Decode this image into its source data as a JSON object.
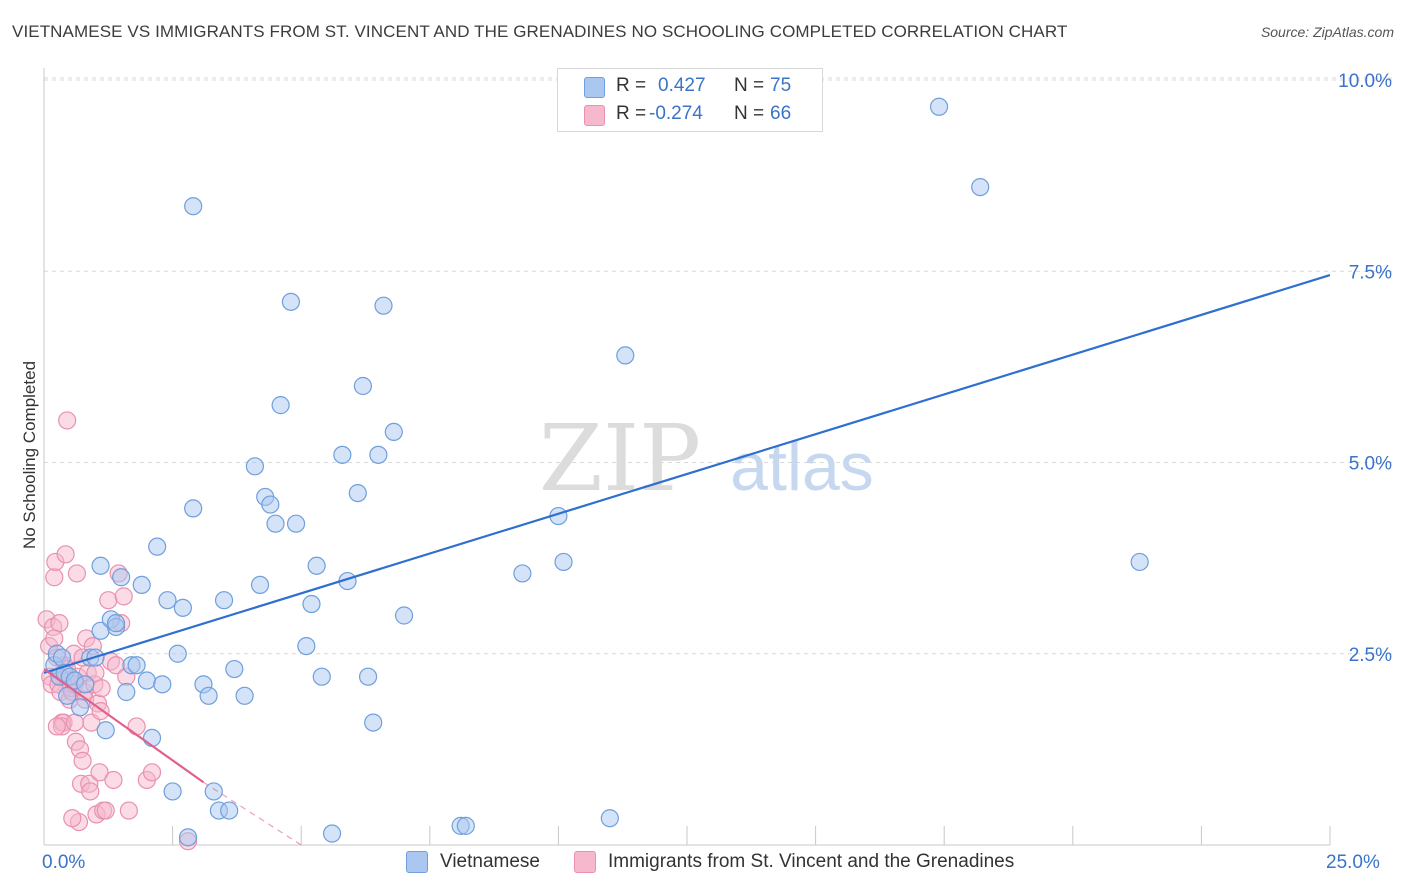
{
  "title": "VIETNAMESE VS IMMIGRANTS FROM ST. VINCENT AND THE GRENADINES NO SCHOOLING COMPLETED CORRELATION CHART",
  "source": "Source: ZipAtlas.com",
  "watermark": {
    "zip": "ZIP",
    "atlas": "atlas"
  },
  "legend_top": {
    "rows": [
      {
        "r_label": "R =",
        "r_value": "0.427",
        "n_label": "N =",
        "n_value": "75"
      },
      {
        "r_label": "R =",
        "r_value": "-0.274",
        "n_label": "N =",
        "n_value": "66"
      }
    ]
  },
  "x_axis": {
    "min_label": "0.0%",
    "max_label": "25.0%"
  },
  "colors": {
    "blue_fill": "#aac7ef",
    "blue_stroke": "#6f9fdc",
    "blue_line": "#2f6fcf",
    "pink_fill": "#f6b8cd",
    "pink_stroke": "#e991ae",
    "pink_line": "#e0608e",
    "grid": "#d9d9d9",
    "tick_label": "#3a73c9"
  },
  "chart_data": {
    "type": "scatter",
    "title": "VIETNAMESE VS IMMIGRANTS FROM ST. VINCENT AND THE GRENADINES NO SCHOOLING COMPLETED CORRELATION CHART",
    "xlabel": "",
    "ylabel": "No Schooling Completed",
    "xlim": [
      0,
      25
    ],
    "ylim": [
      0,
      10.0
    ],
    "y_ticks": [
      2.5,
      5.0,
      7.5,
      10.0
    ],
    "y_tick_labels": [
      "2.5%",
      "5.0%",
      "7.5%",
      "10.0%"
    ],
    "x_tick_labels": [
      "0.0%",
      "25.0%"
    ],
    "legend_position": "top-center",
    "series": [
      {
        "name": "Vietnamese",
        "R": 0.427,
        "N": 75,
        "trend": {
          "x": [
            0.0,
            25.0
          ],
          "y": [
            2.25,
            7.45
          ]
        },
        "points": [
          [
            0.2,
            2.35
          ],
          [
            0.25,
            2.5
          ],
          [
            0.3,
            2.2
          ],
          [
            0.35,
            2.45
          ],
          [
            0.4,
            2.25
          ],
          [
            0.45,
            1.95
          ],
          [
            0.5,
            2.2
          ],
          [
            0.6,
            2.15
          ],
          [
            0.7,
            1.8
          ],
          [
            0.8,
            2.1
          ],
          [
            0.9,
            2.45
          ],
          [
            1.0,
            2.45
          ],
          [
            1.1,
            2.8
          ],
          [
            1.2,
            1.5
          ],
          [
            1.3,
            2.95
          ],
          [
            1.4,
            2.85
          ],
          [
            1.1,
            3.65
          ],
          [
            1.5,
            3.5
          ],
          [
            1.6,
            2.0
          ],
          [
            1.7,
            2.35
          ],
          [
            1.8,
            2.35
          ],
          [
            1.9,
            3.4
          ],
          [
            2.0,
            2.15
          ],
          [
            2.1,
            1.4
          ],
          [
            2.2,
            3.9
          ],
          [
            2.3,
            2.1
          ],
          [
            2.4,
            3.2
          ],
          [
            2.6,
            2.5
          ],
          [
            2.7,
            3.1
          ],
          [
            2.9,
            4.4
          ],
          [
            2.5,
            0.7
          ],
          [
            3.1,
            2.1
          ],
          [
            3.2,
            1.95
          ],
          [
            3.3,
            0.7
          ],
          [
            3.5,
            3.2
          ],
          [
            3.7,
            2.3
          ],
          [
            3.9,
            1.95
          ],
          [
            4.1,
            4.95
          ],
          [
            4.2,
            3.4
          ],
          [
            4.3,
            4.55
          ],
          [
            4.4,
            4.45
          ],
          [
            4.5,
            4.2
          ],
          [
            4.6,
            5.75
          ],
          [
            4.8,
            7.1
          ],
          [
            4.9,
            4.2
          ],
          [
            5.1,
            2.6
          ],
          [
            5.2,
            3.15
          ],
          [
            5.3,
            3.65
          ],
          [
            5.4,
            2.2
          ],
          [
            5.6,
            0.15
          ],
          [
            5.8,
            5.1
          ],
          [
            5.9,
            3.45
          ],
          [
            6.1,
            4.6
          ],
          [
            6.2,
            6.0
          ],
          [
            6.3,
            2.2
          ],
          [
            6.4,
            1.6
          ],
          [
            6.5,
            5.1
          ],
          [
            6.6,
            7.05
          ],
          [
            6.8,
            5.4
          ],
          [
            7.0,
            3.0
          ],
          [
            8.1,
            0.25
          ],
          [
            8.2,
            0.25
          ],
          [
            9.3,
            3.55
          ],
          [
            10.0,
            4.3
          ],
          [
            10.1,
            3.7
          ],
          [
            11.0,
            0.35
          ],
          [
            11.3,
            6.4
          ],
          [
            3.4,
            0.45
          ],
          [
            3.6,
            0.45
          ],
          [
            2.9,
            8.35
          ],
          [
            17.4,
            9.65
          ],
          [
            18.2,
            8.6
          ],
          [
            21.3,
            3.7
          ],
          [
            1.4,
            2.9
          ],
          [
            2.8,
            0.1
          ]
        ]
      },
      {
        "name": "Immigrants from St. Vincent and the Grenadines",
        "R": -0.274,
        "N": 66,
        "trend": {
          "x": [
            0.0,
            3.1
          ],
          "y": [
            2.3,
            0.82
          ]
        },
        "trend_dashed": {
          "x": [
            3.1,
            5.0
          ],
          "y": [
            0.82,
            0.0
          ]
        },
        "points": [
          [
            0.05,
            2.95
          ],
          [
            0.1,
            2.6
          ],
          [
            0.12,
            2.2
          ],
          [
            0.15,
            2.1
          ],
          [
            0.18,
            2.85
          ],
          [
            0.2,
            3.5
          ],
          [
            0.22,
            3.7
          ],
          [
            0.25,
            2.45
          ],
          [
            0.28,
            2.1
          ],
          [
            0.3,
            2.9
          ],
          [
            0.32,
            2.0
          ],
          [
            0.35,
            1.6
          ],
          [
            0.38,
            1.6
          ],
          [
            0.4,
            2.35
          ],
          [
            0.42,
            3.8
          ],
          [
            0.45,
            2.3
          ],
          [
            0.48,
            2.15
          ],
          [
            0.5,
            1.9
          ],
          [
            0.52,
            2.05
          ],
          [
            0.55,
            2.0
          ],
          [
            0.58,
            2.5
          ],
          [
            0.6,
            2.1
          ],
          [
            0.62,
            1.35
          ],
          [
            0.64,
            3.55
          ],
          [
            0.66,
            2.2
          ],
          [
            0.68,
            0.3
          ],
          [
            0.7,
            1.25
          ],
          [
            0.72,
            0.8
          ],
          [
            0.75,
            1.1
          ],
          [
            0.78,
            2.0
          ],
          [
            0.8,
            1.9
          ],
          [
            0.82,
            2.7
          ],
          [
            0.85,
            2.25
          ],
          [
            0.88,
            0.8
          ],
          [
            0.9,
            0.7
          ],
          [
            0.92,
            1.6
          ],
          [
            0.95,
            2.6
          ],
          [
            0.98,
            2.1
          ],
          [
            1.0,
            2.25
          ],
          [
            1.02,
            0.4
          ],
          [
            1.05,
            1.85
          ],
          [
            1.08,
            0.95
          ],
          [
            1.1,
            1.75
          ],
          [
            1.12,
            2.05
          ],
          [
            1.15,
            0.45
          ],
          [
            1.2,
            0.45
          ],
          [
            1.25,
            3.2
          ],
          [
            1.3,
            2.4
          ],
          [
            1.35,
            0.85
          ],
          [
            1.4,
            2.35
          ],
          [
            1.45,
            3.55
          ],
          [
            1.5,
            2.9
          ],
          [
            1.55,
            3.25
          ],
          [
            1.6,
            2.2
          ],
          [
            1.65,
            0.45
          ],
          [
            1.8,
            1.55
          ],
          [
            2.0,
            0.85
          ],
          [
            2.1,
            0.95
          ],
          [
            2.8,
            0.05
          ],
          [
            0.35,
            1.55
          ],
          [
            0.45,
            5.55
          ],
          [
            0.55,
            0.35
          ],
          [
            0.25,
            1.55
          ],
          [
            0.6,
            1.6
          ],
          [
            0.75,
            2.45
          ],
          [
            0.2,
            2.7
          ]
        ]
      }
    ]
  },
  "legend_bottom": {
    "items": [
      "Vietnamese",
      "Immigrants from St. Vincent and the Grenadines"
    ]
  }
}
